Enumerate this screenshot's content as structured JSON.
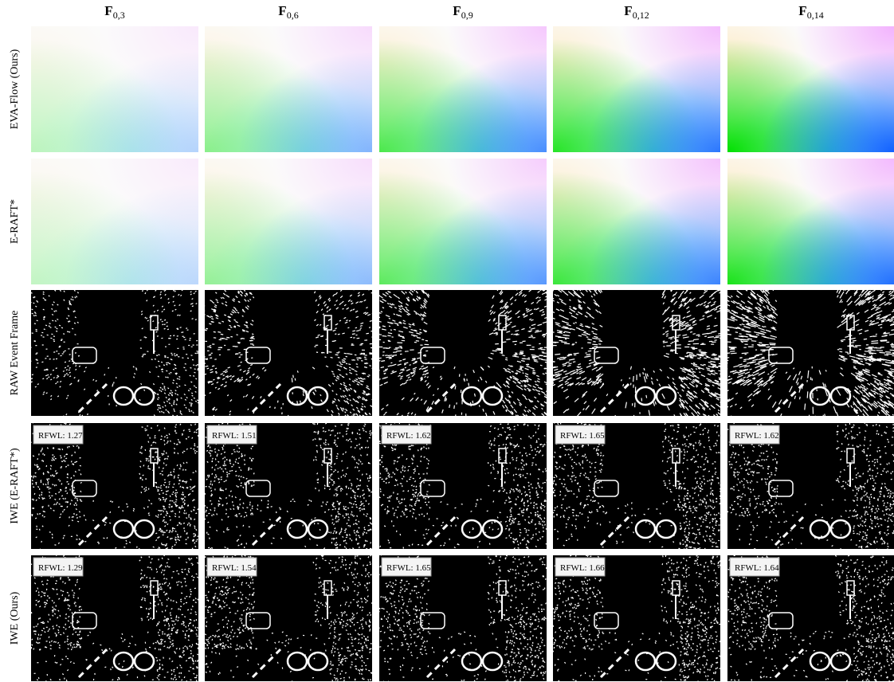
{
  "columns": [
    {
      "symbol": "F",
      "subscript": "0,3"
    },
    {
      "symbol": "F",
      "subscript": "0,6"
    },
    {
      "symbol": "F",
      "subscript": "0,9"
    },
    {
      "symbol": "F",
      "subscript": "0,12"
    },
    {
      "symbol": "F",
      "subscript": "0,14"
    }
  ],
  "rows": [
    {
      "label": "EVA-Flow (Ours)"
    },
    {
      "label": "E-RAFT*"
    },
    {
      "label": "RAW Event Frame"
    },
    {
      "label": "IWE (E-RAFT*)",
      "scores": [
        "RFWL: 1.27",
        "RFWL: 1.51",
        "RFWL: 1.62",
        "RFWL: 1.65",
        "RFWL: 1.62"
      ]
    },
    {
      "label": "IWE (Ours)",
      "scores": [
        "RFWL: 1.29",
        "RFWL: 1.54",
        "RFWL: 1.65",
        "RFWL: 1.66",
        "RFWL: 1.64"
      ]
    }
  ]
}
